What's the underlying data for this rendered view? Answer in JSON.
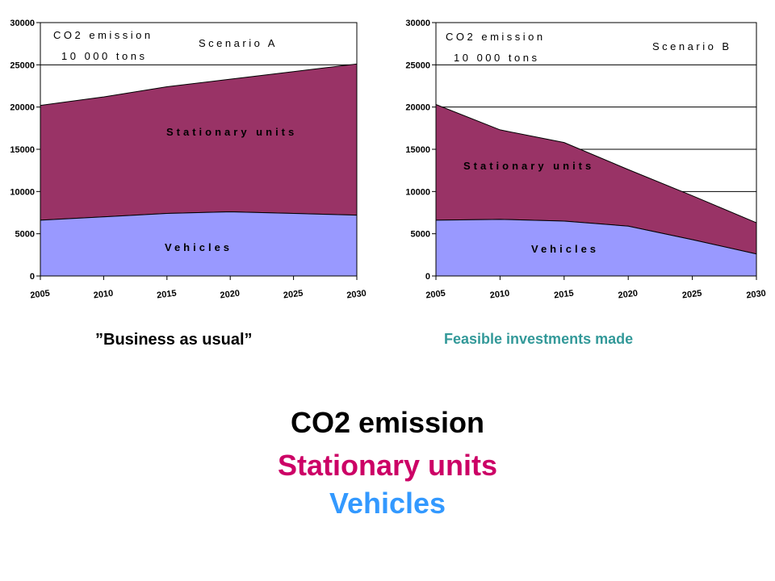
{
  "chart_data": [
    {
      "type": "area",
      "stacked": true,
      "title_lines": [
        "CO2 emission",
        "10 000 tons"
      ],
      "scenario_label": "Scenario A",
      "x": [
        2005,
        2010,
        2015,
        2020,
        2025,
        2030
      ],
      "ylim": [
        0,
        30000
      ],
      "yticks": [
        0,
        5000,
        10000,
        15000,
        20000,
        25000,
        30000
      ],
      "grid": "horizontal",
      "series": [
        {
          "name": "Vehicles",
          "values": [
            6600,
            7000,
            7400,
            7600,
            7400,
            7200
          ],
          "color": "#9999ff"
        },
        {
          "name": "Stationary units",
          "values": [
            13600,
            14200,
            15000,
            15700,
            16800,
            17900
          ],
          "color": "#993366"
        }
      ]
    },
    {
      "type": "area",
      "stacked": true,
      "title_lines": [
        "CO2 emission",
        "10 000 tons"
      ],
      "scenario_label": "Scenario B",
      "x": [
        2005,
        2010,
        2015,
        2020,
        2025,
        2030
      ],
      "ylim": [
        0,
        30000
      ],
      "yticks": [
        0,
        5000,
        10000,
        15000,
        20000,
        25000,
        30000
      ],
      "grid": "horizontal",
      "series": [
        {
          "name": "Vehicles",
          "values": [
            6600,
            6700,
            6500,
            5900,
            4300,
            2600
          ],
          "color": "#9999ff"
        },
        {
          "name": "Stationary units",
          "values": [
            13700,
            10600,
            9300,
            6700,
            5200,
            3700
          ],
          "color": "#993366"
        }
      ]
    }
  ],
  "captions": {
    "left": "”Business as usual”",
    "right": "Feasible investments made"
  },
  "legend": {
    "line1": "CO2 emission",
    "line2": "Stationary units",
    "line3": "Vehicles"
  },
  "colors": {
    "vehicles": "#9999ff",
    "stationary": "#993366",
    "caption_right": "#339999",
    "legend_stationary": "#cc0066",
    "legend_vehicles": "#3399ff"
  }
}
